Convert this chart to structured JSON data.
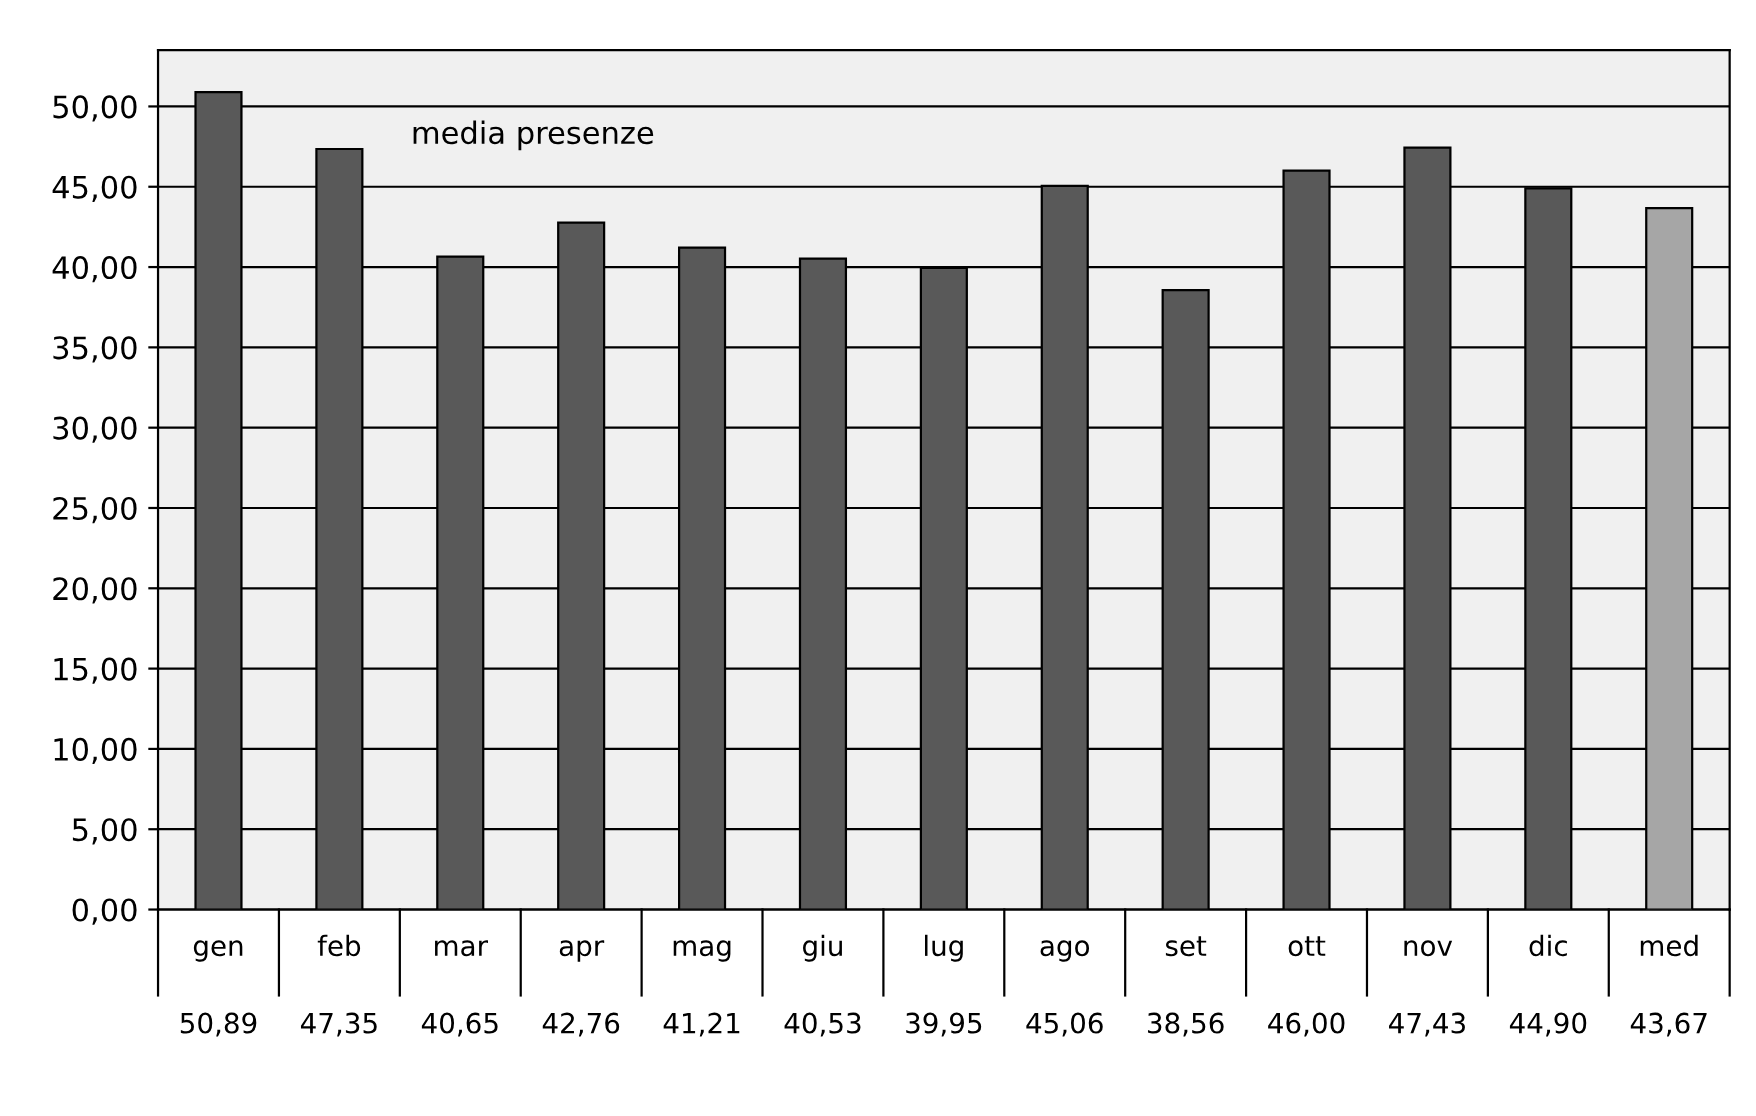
{
  "chart_data": {
    "type": "bar",
    "title": "media presenze",
    "categories": [
      "gen",
      "feb",
      "mar",
      "apr",
      "mag",
      "giu",
      "lug",
      "ago",
      "set",
      "ott",
      "nov",
      "dic",
      "med"
    ],
    "values": [
      50.89,
      47.35,
      40.65,
      42.76,
      41.21,
      40.53,
      39.95,
      45.06,
      38.56,
      46.0,
      47.43,
      44.9,
      43.67
    ],
    "colors": [
      "#595959",
      "#595959",
      "#595959",
      "#595959",
      "#595959",
      "#595959",
      "#595959",
      "#595959",
      "#595959",
      "#595959",
      "#595959",
      "#595959",
      "#a6a6a6"
    ],
    "value_labels": [
      "50,89",
      "47,35",
      "40,65",
      "42,76",
      "41,21",
      "40,53",
      "39,95",
      "45,06",
      "38,56",
      "46,00",
      "47,43",
      "44,90",
      "43,67"
    ],
    "ylim": [
      0,
      53.5
    ],
    "yticks": [
      {
        "value": 0,
        "label": "0,00"
      },
      {
        "value": 5,
        "label": "5,00"
      },
      {
        "value": 10,
        "label": "10,00"
      },
      {
        "value": 15,
        "label": "15,00"
      },
      {
        "value": 20,
        "label": "20,00"
      },
      {
        "value": 25,
        "label": "25,00"
      },
      {
        "value": 30,
        "label": "30,00"
      },
      {
        "value": 35,
        "label": "35,00"
      },
      {
        "value": 40,
        "label": "40,00"
      },
      {
        "value": 45,
        "label": "45,00"
      },
      {
        "value": 50,
        "label": "50,00"
      }
    ],
    "grid": "y"
  }
}
